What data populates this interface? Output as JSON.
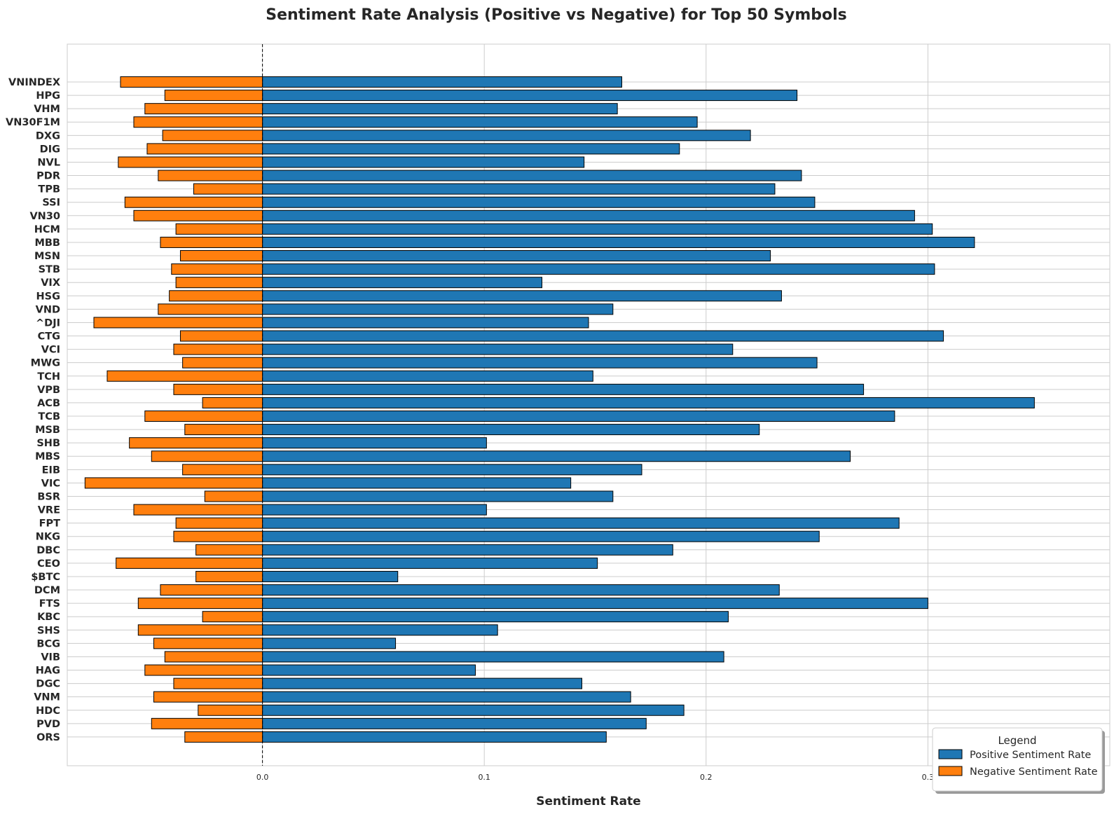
{
  "chart_data": {
    "type": "bar",
    "orientation": "horizontal",
    "title": "Sentiment Rate Analysis (Positive vs Negative) for Top 50 Symbols",
    "xlabel": "Sentiment Rate",
    "ylabel": "",
    "xlim": [
      -0.088,
      0.382
    ],
    "x_ticks": [
      0.0,
      0.1,
      0.2,
      0.3
    ],
    "x_tick_labels": [
      "0.0",
      "0.1",
      "0.2",
      "0.3"
    ],
    "grid": true,
    "zero_line": "dashed",
    "categories": [
      "VNINDEX",
      "HPG",
      "VHM",
      "VN30F1M",
      "DXG",
      "DIG",
      "NVL",
      "PDR",
      "TPB",
      "SSI",
      "VN30",
      "HCM",
      "MBB",
      "MSN",
      "STB",
      "VIX",
      "HSG",
      "VND",
      "^DJI",
      "CTG",
      "VCI",
      "MWG",
      "TCH",
      "VPB",
      "ACB",
      "TCB",
      "MSB",
      "SHB",
      "MBS",
      "EIB",
      "VIC",
      "BSR",
      "VRE",
      "FPT",
      "NKG",
      "DBC",
      "CEO",
      "$BTC",
      "DCM",
      "FTS",
      "KBC",
      "SHS",
      "BCG",
      "VIB",
      "HAG",
      "DGC",
      "VNM",
      "HDC",
      "PVD",
      "ORS"
    ],
    "series": [
      {
        "name": "Positive Sentiment Rate",
        "color": "#1f77b4",
        "values": [
          0.162,
          0.241,
          0.16,
          0.196,
          0.22,
          0.188,
          0.145,
          0.243,
          0.231,
          0.249,
          0.294,
          0.302,
          0.321,
          0.229,
          0.303,
          0.126,
          0.234,
          0.158,
          0.147,
          0.307,
          0.212,
          0.25,
          0.149,
          0.271,
          0.348,
          0.285,
          0.224,
          0.101,
          0.265,
          0.171,
          0.139,
          0.158,
          0.101,
          0.287,
          0.251,
          0.185,
          0.151,
          0.061,
          0.233,
          0.3,
          0.21,
          0.106,
          0.06,
          0.208,
          0.096,
          0.144,
          0.166,
          0.19,
          0.173,
          0.155
        ]
      },
      {
        "name": "Negative Sentiment Rate",
        "color": "#ff7f0e",
        "values": [
          -0.064,
          -0.044,
          -0.053,
          -0.058,
          -0.045,
          -0.052,
          -0.065,
          -0.047,
          -0.031,
          -0.062,
          -0.058,
          -0.039,
          -0.046,
          -0.037,
          -0.041,
          -0.039,
          -0.042,
          -0.047,
          -0.076,
          -0.037,
          -0.04,
          -0.036,
          -0.07,
          -0.04,
          -0.027,
          -0.053,
          -0.035,
          -0.06,
          -0.05,
          -0.036,
          -0.08,
          -0.026,
          -0.058,
          -0.039,
          -0.04,
          -0.03,
          -0.066,
          -0.03,
          -0.046,
          -0.056,
          -0.027,
          -0.056,
          -0.049,
          -0.044,
          -0.053,
          -0.04,
          -0.049,
          -0.029,
          -0.05,
          -0.035
        ]
      }
    ],
    "legend": {
      "title": "Legend",
      "position": "lower-right",
      "entries": [
        "Positive Sentiment Rate",
        "Negative Sentiment Rate"
      ]
    }
  },
  "colors": {
    "positive": "#1f77b4",
    "negative": "#ff7f0e",
    "grid": "#cccccc",
    "bar_edge": "#000000"
  }
}
